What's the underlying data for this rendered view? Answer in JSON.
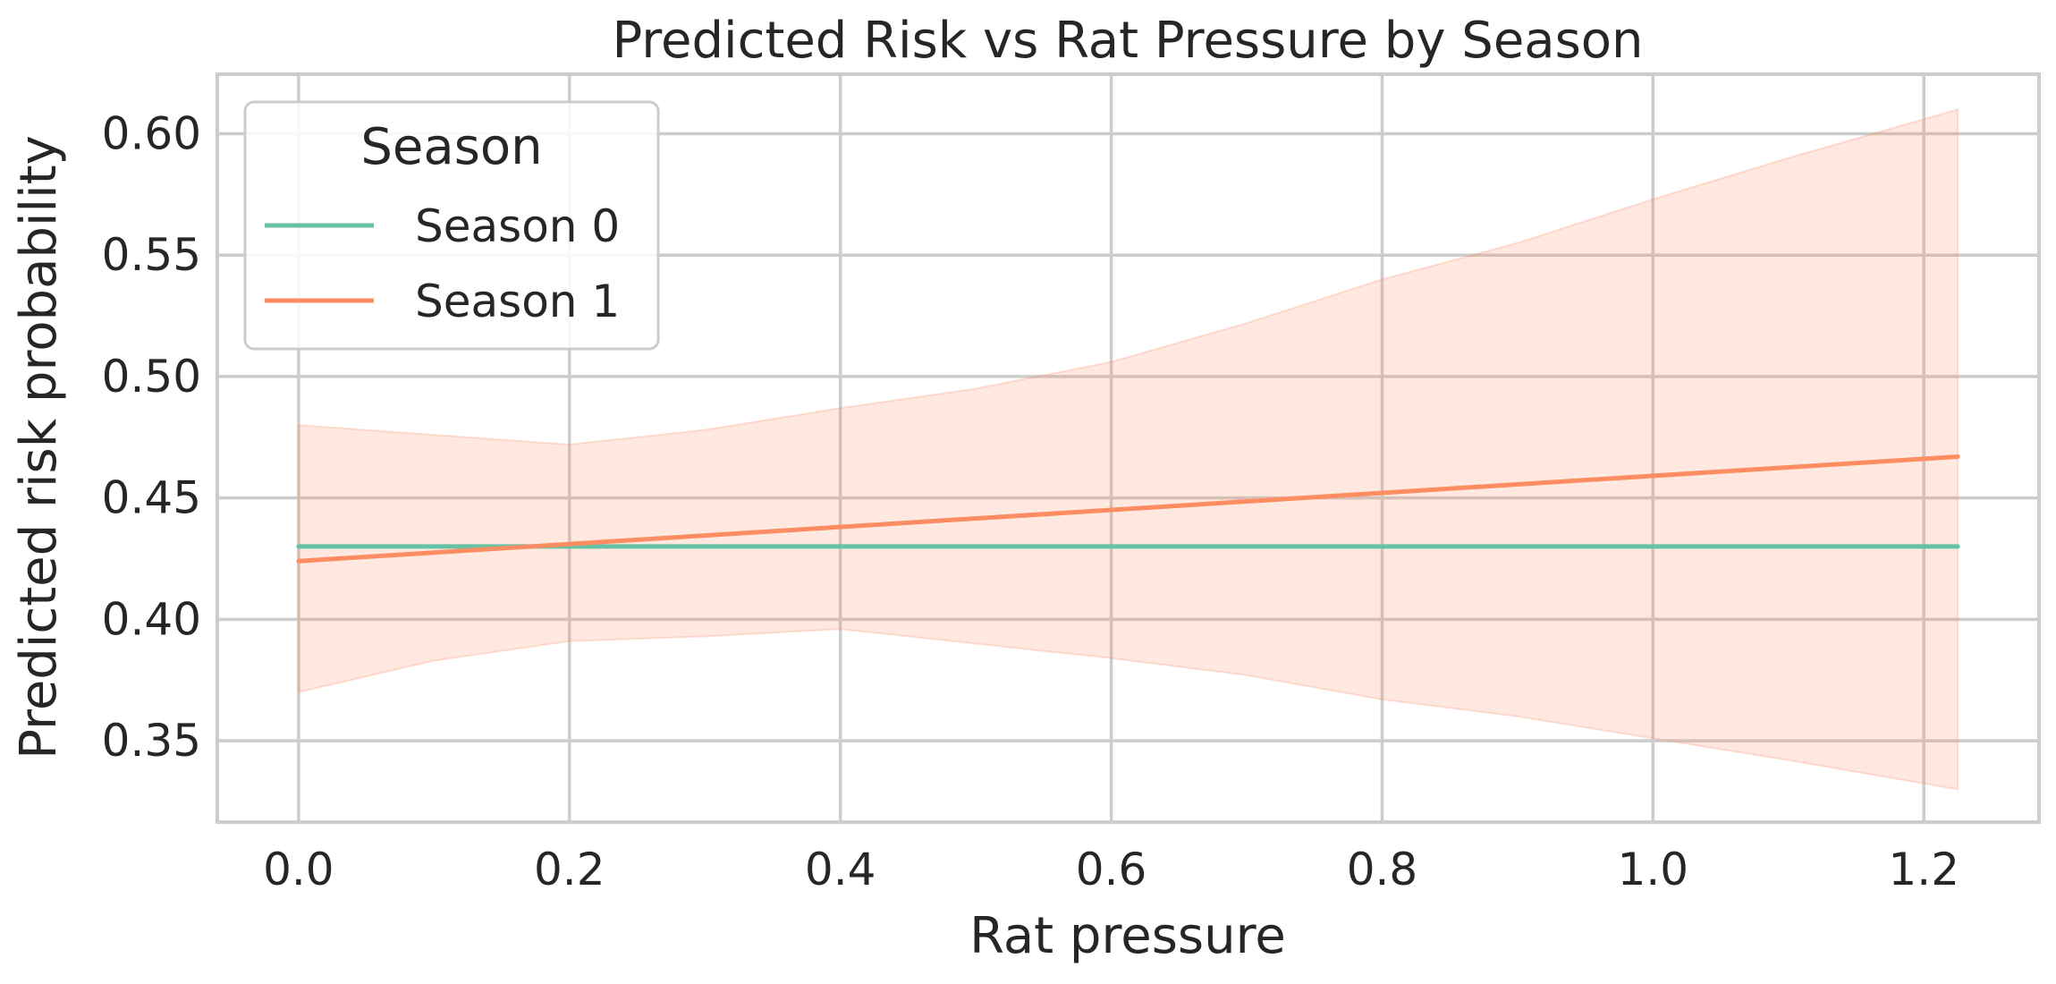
{
  "chart_data": {
    "type": "line",
    "title": "Predicted Risk vs Rat Pressure by Season",
    "xlabel": "Rat pressure",
    "ylabel": "Predicted risk probability",
    "xlim": [
      -0.06,
      1.285
    ],
    "ylim": [
      0.3165,
      0.6245
    ],
    "xticks": [
      0.0,
      0.2,
      0.4,
      0.6,
      0.8,
      1.0,
      1.2
    ],
    "xtick_labels": [
      "0.0",
      "0.2",
      "0.4",
      "0.6",
      "0.8",
      "1.0",
      "1.2"
    ],
    "yticks": [
      0.35,
      0.4,
      0.45,
      0.5,
      0.55,
      0.6
    ],
    "ytick_labels": [
      "0.35",
      "0.40",
      "0.45",
      "0.50",
      "0.55",
      "0.60"
    ],
    "grid": true,
    "legend": {
      "title": "Season",
      "placement": "top-left"
    },
    "series": [
      {
        "name": "Season 0",
        "color": "#66c2a5",
        "x": [
          0.0,
          1.225
        ],
        "y": [
          0.43,
          0.43
        ]
      },
      {
        "name": "Season 1",
        "color": "#fc8d62",
        "x": [
          0.0,
          1.225
        ],
        "y": [
          0.424,
          0.467
        ],
        "band": {
          "color": "#fc8d62",
          "opacity": 0.2,
          "x": [
            0.0,
            0.1,
            0.2,
            0.3,
            0.4,
            0.5,
            0.6,
            0.7,
            0.8,
            0.9,
            1.0,
            1.1,
            1.225
          ],
          "upper": [
            0.48,
            0.476,
            0.472,
            0.478,
            0.487,
            0.495,
            0.506,
            0.522,
            0.54,
            0.555,
            0.573,
            0.59,
            0.61
          ],
          "lower": [
            0.37,
            0.383,
            0.391,
            0.393,
            0.396,
            0.39,
            0.384,
            0.377,
            0.367,
            0.36,
            0.351,
            0.342,
            0.33
          ]
        }
      }
    ]
  }
}
